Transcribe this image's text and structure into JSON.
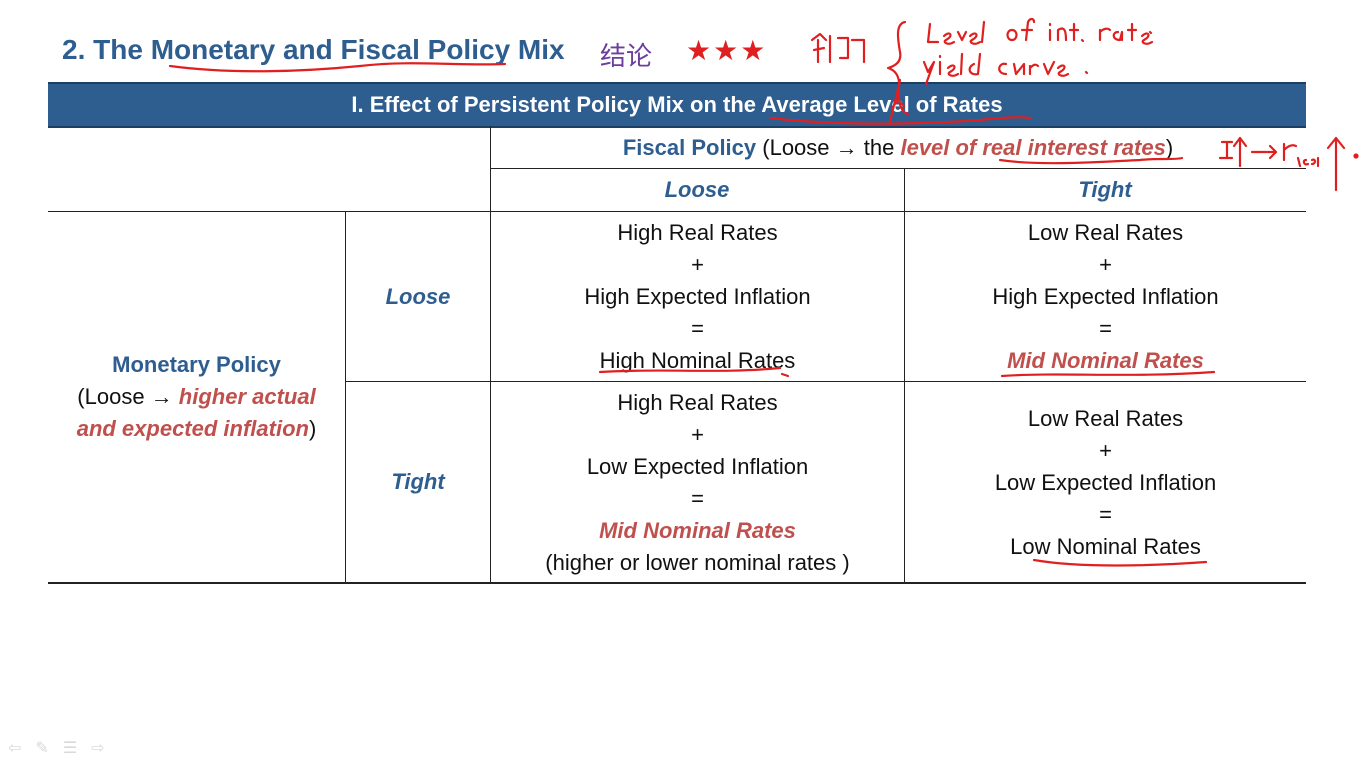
{
  "slide": {
    "title": "2. The Monetary and Fiscal Policy Mix",
    "cn_note": "结论",
    "stars": "★★★",
    "colors": {
      "title_blue": "#2e5d8f",
      "accent_red": "#c0504d",
      "star_red": "#e02020",
      "ink_red": "#e02020"
    }
  },
  "table": {
    "banner": "I. Effect of Persistent Policy Mix on the Average Level of Rates",
    "fiscal_header": {
      "label": "Fiscal Policy",
      "open": " (Loose ",
      "arrow": "→",
      "the": " the ",
      "emph": "level of real interest rates",
      "close": ")"
    },
    "fiscal_cols": [
      "Loose",
      "Tight"
    ],
    "monetary_header": {
      "label": "Monetary Policy",
      "open": "(Loose ",
      "arrow": "→",
      "emph1": " higher actual",
      "emph2": "and expected inflation",
      "close": ")"
    },
    "monetary_rows": [
      "Loose",
      "Tight"
    ],
    "cells": {
      "r1c1": {
        "l1": "High Real Rates",
        "l2": "+",
        "l3": "High Expected Inflation",
        "l4": "=",
        "l5": "High Nominal Rates"
      },
      "r1c2": {
        "l1": "Low Real Rates",
        "l2": "+",
        "l3": "High Expected Inflation",
        "l4": "=",
        "l5": "Mid Nominal Rates"
      },
      "r2c1": {
        "l1": "High Real Rates",
        "l2": "+",
        "l3": "Low Expected Inflation",
        "l4": "=",
        "l5": "Mid Nominal Rates",
        "l6": "(higher or lower nominal rates )"
      },
      "r2c2": {
        "l1": "Low Real Rates",
        "l2": "+",
        "l3": "Low Expected Inflation",
        "l4": "=",
        "l5": "Low Nominal Rates"
      }
    }
  },
  "nav_icons": [
    "back-icon",
    "pen-icon",
    "menu-icon",
    "forward-icon"
  ]
}
